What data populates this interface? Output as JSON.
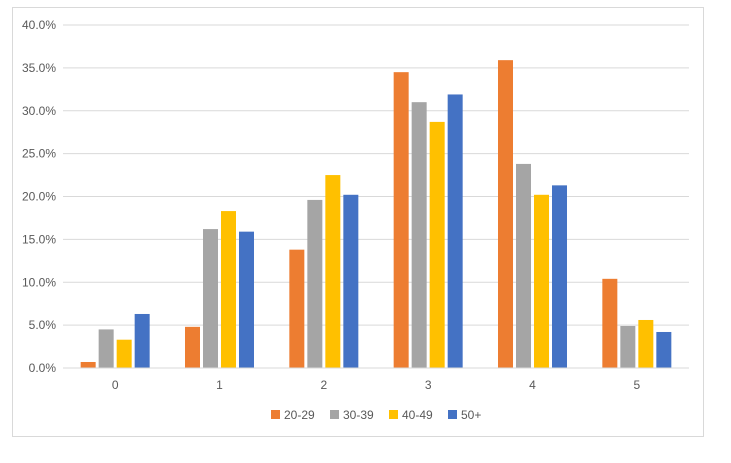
{
  "chart_data": {
    "type": "bar",
    "categories": [
      "0",
      "1",
      "2",
      "3",
      "4",
      "5"
    ],
    "series": [
      {
        "name": "20-29",
        "color": "#ED7D31",
        "values": [
          0.7,
          4.8,
          13.8,
          34.5,
          35.9,
          10.4
        ]
      },
      {
        "name": "30-39",
        "color": "#A5A5A5",
        "values": [
          4.5,
          16.2,
          19.6,
          31.0,
          23.8,
          4.9
        ]
      },
      {
        "name": "40-49",
        "color": "#FFC000",
        "values": [
          3.3,
          18.3,
          22.5,
          28.7,
          20.2,
          5.6
        ]
      },
      {
        "name": "50+",
        "color": "#4472C4",
        "values": [
          6.3,
          15.9,
          20.2,
          31.9,
          21.3,
          4.2
        ]
      }
    ],
    "y_ticks": [
      "0.0%",
      "5.0%",
      "10.0%",
      "15.0%",
      "20.0%",
      "25.0%",
      "30.0%",
      "35.0%",
      "40.0%"
    ],
    "ylim": [
      0,
      40
    ],
    "grid": true,
    "legend_position": "bottom",
    "title": "",
    "xlabel": "",
    "ylabel": ""
  }
}
